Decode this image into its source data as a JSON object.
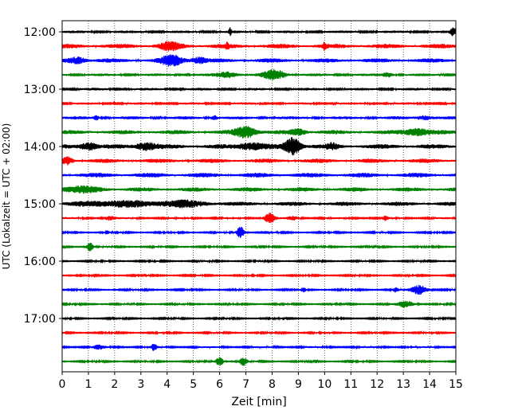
{
  "chart_data": {
    "type": "line",
    "title": "",
    "xlabel": "Zeit  [min]",
    "ylabel": "UTC (Lokalzeit = UTC + 02:00)",
    "xlim": [
      0,
      15
    ],
    "x_ticks": [
      0,
      1,
      2,
      3,
      4,
      5,
      6,
      7,
      8,
      9,
      10,
      11,
      12,
      13,
      14,
      15
    ],
    "x_tick_labels": [
      "0",
      "1",
      "2",
      "3",
      "4",
      "5",
      "6",
      "7",
      "8",
      "9",
      "10",
      "11",
      "12",
      "13",
      "14",
      "15"
    ],
    "y_tick_labels": [
      "12:00",
      "13:00",
      "14:00",
      "15:00",
      "16:00",
      "17:00"
    ],
    "y_tick_rows": [
      0,
      4,
      8,
      12,
      16,
      20
    ],
    "row_duration_min": 15,
    "grid": "vertical-dotted",
    "colors": [
      "#000000",
      "#ff0000",
      "#0000ff",
      "#008000"
    ],
    "traces": [
      {
        "start": "12:00",
        "color": "#000000",
        "amp": 0.35,
        "events": [
          {
            "t": 6.4,
            "a": 1.0,
            "w": 0.05
          },
          {
            "t": 14.9,
            "a": 1.0,
            "w": 0.1
          }
        ]
      },
      {
        "start": "12:15",
        "color": "#ff0000",
        "amp": 0.6,
        "events": [
          {
            "t": 4.1,
            "a": 0.8,
            "w": 0.4
          },
          {
            "t": 6.3,
            "a": 0.8,
            "w": 0.05
          },
          {
            "t": 10.0,
            "a": 1.0,
            "w": 0.05
          }
        ]
      },
      {
        "start": "12:30",
        "color": "#0000ff",
        "amp": 0.55,
        "events": [
          {
            "t": 0.6,
            "a": 0.8,
            "w": 0.3
          },
          {
            "t": 4.2,
            "a": 1.2,
            "w": 0.4
          },
          {
            "t": 5.2,
            "a": 0.7,
            "w": 0.3
          }
        ]
      },
      {
        "start": "12:45",
        "color": "#008000",
        "amp": 0.35,
        "events": [
          {
            "t": 6.3,
            "a": 0.7,
            "w": 0.4
          },
          {
            "t": 8.1,
            "a": 1.3,
            "w": 0.4
          },
          {
            "t": 12.4,
            "a": 0.5,
            "w": 0.2
          }
        ]
      },
      {
        "start": "13:00",
        "color": "#000000",
        "amp": 0.35,
        "events": []
      },
      {
        "start": "13:15",
        "color": "#ff0000",
        "amp": 0.3,
        "events": [
          {
            "t": 2.0,
            "a": 0.6,
            "w": 0.05
          }
        ]
      },
      {
        "start": "13:30",
        "color": "#0000ff",
        "amp": 0.4,
        "events": [
          {
            "t": 1.3,
            "a": 0.5,
            "w": 0.1
          },
          {
            "t": 5.8,
            "a": 0.6,
            "w": 0.1
          },
          {
            "t": 13.8,
            "a": 0.5,
            "w": 0.3
          }
        ]
      },
      {
        "start": "13:45",
        "color": "#008000",
        "amp": 0.55,
        "events": [
          {
            "t": 7.0,
            "a": 1.4,
            "w": 0.4
          },
          {
            "t": 9.0,
            "a": 0.7,
            "w": 0.3
          },
          {
            "t": 13.5,
            "a": 0.8,
            "w": 0.5
          }
        ]
      },
      {
        "start": "14:00",
        "color": "#000000",
        "amp": 0.6,
        "events": [
          {
            "t": 1.0,
            "a": 0.9,
            "w": 0.3
          },
          {
            "t": 3.2,
            "a": 0.9,
            "w": 0.4
          },
          {
            "t": 7.2,
            "a": 0.8,
            "w": 0.5
          },
          {
            "t": 8.8,
            "a": 2.2,
            "w": 0.3
          },
          {
            "t": 10.3,
            "a": 0.6,
            "w": 0.2
          }
        ]
      },
      {
        "start": "14:15",
        "color": "#ff0000",
        "amp": 0.55,
        "events": [
          {
            "t": 0.2,
            "a": 0.8,
            "w": 0.2
          }
        ]
      },
      {
        "start": "14:30",
        "color": "#0000ff",
        "amp": 0.6,
        "events": []
      },
      {
        "start": "14:45",
        "color": "#008000",
        "amp": 0.55,
        "events": [
          {
            "t": 0.6,
            "a": 0.6,
            "w": 0.8
          }
        ]
      },
      {
        "start": "15:00",
        "color": "#000000",
        "amp": 0.55,
        "events": [
          {
            "t": 2.0,
            "a": 0.6,
            "w": 1.2
          },
          {
            "t": 4.5,
            "a": 0.6,
            "w": 1.0
          }
        ]
      },
      {
        "start": "15:15",
        "color": "#ff0000",
        "amp": 0.25,
        "events": [
          {
            "t": 1.8,
            "a": 0.5,
            "w": 0.2
          },
          {
            "t": 7.9,
            "a": 1.3,
            "w": 0.2
          },
          {
            "t": 8.8,
            "a": 0.4,
            "w": 0.2
          },
          {
            "t": 12.3,
            "a": 0.5,
            "w": 0.1
          }
        ]
      },
      {
        "start": "15:30",
        "color": "#0000ff",
        "amp": 0.2,
        "events": [
          {
            "t": 1.7,
            "a": 0.4,
            "w": 0.1
          },
          {
            "t": 6.8,
            "a": 1.4,
            "w": 0.15
          }
        ]
      },
      {
        "start": "15:45",
        "color": "#008000",
        "amp": 0.2,
        "events": [
          {
            "t": 1.05,
            "a": 1.2,
            "w": 0.12
          }
        ]
      },
      {
        "start": "16:00",
        "color": "#000000",
        "amp": 0.2,
        "events": []
      },
      {
        "start": "16:15",
        "color": "#ff0000",
        "amp": 0.2,
        "events": []
      },
      {
        "start": "16:30",
        "color": "#0000ff",
        "amp": 0.2,
        "events": [
          {
            "t": 9.2,
            "a": 0.5,
            "w": 0.1
          },
          {
            "t": 12.7,
            "a": 0.5,
            "w": 0.1
          },
          {
            "t": 13.6,
            "a": 1.2,
            "w": 0.3
          }
        ]
      },
      {
        "start": "16:45",
        "color": "#008000",
        "amp": 0.2,
        "events": [
          {
            "t": 13.1,
            "a": 0.8,
            "w": 0.3
          }
        ]
      },
      {
        "start": "17:00",
        "color": "#000000",
        "amp": 0.2,
        "events": []
      },
      {
        "start": "17:15",
        "color": "#ff0000",
        "amp": 0.2,
        "events": []
      },
      {
        "start": "17:30",
        "color": "#0000ff",
        "amp": 0.25,
        "events": [
          {
            "t": 1.4,
            "a": 0.5,
            "w": 0.2
          },
          {
            "t": 3.5,
            "a": 0.8,
            "w": 0.1
          }
        ]
      },
      {
        "start": "17:45",
        "color": "#008000",
        "amp": 0.2,
        "events": [
          {
            "t": 6.0,
            "a": 1.1,
            "w": 0.15
          },
          {
            "t": 6.9,
            "a": 1.0,
            "w": 0.15
          }
        ]
      }
    ]
  }
}
